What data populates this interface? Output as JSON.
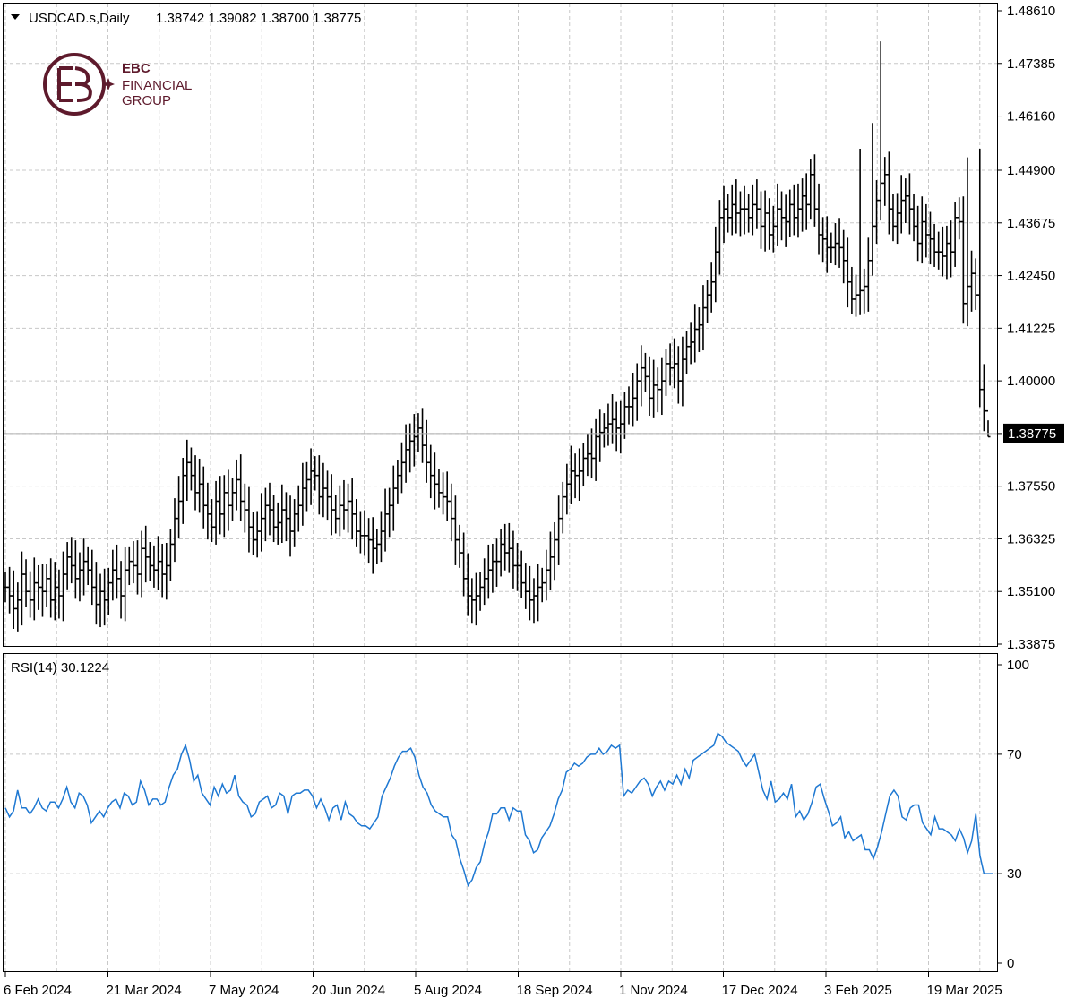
{
  "header": {
    "symbol": "USDCAD.s,Daily",
    "ohlc": "1.38742 1.39082 1.38700 1.38775"
  },
  "logo": {
    "line1": "EBC",
    "line2": "FINANCIAL",
    "line3": "GROUP"
  },
  "indicator_label": "RSI(14) 30.1224",
  "current_price_label": "1.38775",
  "colors": {
    "bars": "#000000",
    "rsi_line": "#1e78d2",
    "grid": "#c8c8c8",
    "logo": "#5e1a2c"
  },
  "chart_data": [
    {
      "type": "ohlc",
      "title": "USDCAD.s,Daily",
      "ylim": [
        1.3375,
        1.4862
      ],
      "y_ticks": [
        "1.48610",
        "1.47385",
        "1.46160",
        "1.44900",
        "1.43675",
        "1.42450",
        "1.41225",
        "1.40000",
        "1.38775",
        "1.37550",
        "1.36325",
        "1.35100",
        "1.33875"
      ],
      "x_ticks": [
        "6 Feb 2024",
        "21 Mar 2024",
        "7 May 2024",
        "20 Jun 2024",
        "5 Aug 2024",
        "18 Sep 2024",
        "1 Nov 2024",
        "17 Dec 2024",
        "3 Feb 2025",
        "19 Mar 2025"
      ],
      "grid": true,
      "close_approx": [
        1.352,
        1.35,
        1.347,
        1.349,
        1.355,
        1.351,
        1.349,
        1.353,
        1.352,
        1.351,
        1.354,
        1.349,
        1.352,
        1.35,
        1.355,
        1.359,
        1.357,
        1.354,
        1.356,
        1.358,
        1.356,
        1.352,
        1.348,
        1.351,
        1.349,
        1.353,
        1.356,
        1.354,
        1.35,
        1.356,
        1.358,
        1.357,
        1.355,
        1.361,
        1.359,
        1.357,
        1.356,
        1.358,
        1.355,
        1.357,
        1.362,
        1.368,
        1.372,
        1.378,
        1.381,
        1.378,
        1.374,
        1.376,
        1.371,
        1.369,
        1.366,
        1.372,
        1.369,
        1.374,
        1.371,
        1.374,
        1.377,
        1.372,
        1.37,
        1.366,
        1.363,
        1.365,
        1.368,
        1.371,
        1.37,
        1.366,
        1.367,
        1.37,
        1.368,
        1.365,
        1.369,
        1.371,
        1.375,
        1.377,
        1.379,
        1.378,
        1.373,
        1.375,
        1.373,
        1.37,
        1.368,
        1.371,
        1.37,
        1.372,
        1.369,
        1.365,
        1.364,
        1.364,
        1.363,
        1.361,
        1.362,
        1.365,
        1.369,
        1.371,
        1.375,
        1.378,
        1.381,
        1.384,
        1.386,
        1.387,
        1.389,
        1.385,
        1.381,
        1.378,
        1.376,
        1.374,
        1.373,
        1.372,
        1.368,
        1.363,
        1.36,
        1.354,
        1.35,
        1.349,
        1.35,
        1.352,
        1.354,
        1.356,
        1.358,
        1.358,
        1.362,
        1.36,
        1.361,
        1.357,
        1.357,
        1.353,
        1.351,
        1.349,
        1.35,
        1.352,
        1.353,
        1.356,
        1.359,
        1.363,
        1.368,
        1.373,
        1.376,
        1.379,
        1.378,
        1.379,
        1.382,
        1.383,
        1.382,
        1.387,
        1.388,
        1.389,
        1.39,
        1.391,
        1.389,
        1.39,
        1.394,
        1.394,
        1.396,
        1.4,
        1.403,
        1.401,
        1.396,
        1.399,
        1.398,
        1.4,
        1.404,
        1.403,
        1.404,
        1.4,
        1.405,
        1.408,
        1.409,
        1.412,
        1.413,
        1.417,
        1.42,
        1.423,
        1.43,
        1.438,
        1.44,
        1.438,
        1.441,
        1.439,
        1.44,
        1.44,
        1.438,
        1.441,
        1.44,
        1.436,
        1.439,
        1.434,
        1.436,
        1.44,
        1.438,
        1.437,
        1.441,
        1.438,
        1.44,
        1.443,
        1.441,
        1.448,
        1.44,
        1.434,
        1.433,
        1.431,
        1.431,
        1.432,
        1.431,
        1.428,
        1.423,
        1.419,
        1.42,
        1.421,
        1.422,
        1.428,
        1.436,
        1.442,
        1.446,
        1.448,
        1.44,
        1.436,
        1.439,
        1.442,
        1.443,
        1.44,
        1.436,
        1.432,
        1.437,
        1.434,
        1.433,
        1.43,
        1.43,
        1.429,
        1.432,
        1.43,
        1.438,
        1.437,
        1.418,
        1.422,
        1.425,
        1.42,
        1.398,
        1.393,
        1.387
      ]
    },
    {
      "type": "line",
      "title": "RSI(14) 30.1224",
      "name": "RSI(14)",
      "ylim": [
        0,
        100
      ],
      "y_ticks": [
        "100",
        "70",
        "30",
        "0"
      ],
      "grid": true,
      "values": [
        52,
        49,
        51,
        58,
        52,
        52,
        50,
        52,
        55,
        52,
        51,
        54,
        54,
        52,
        55,
        59,
        54,
        52,
        57,
        56,
        53,
        47,
        49,
        51,
        49,
        52,
        54,
        55,
        52,
        57,
        56,
        53,
        54,
        61,
        58,
        53,
        55,
        55,
        53,
        54,
        59,
        63,
        65,
        70,
        73,
        68,
        61,
        63,
        57,
        55,
        53,
        59,
        56,
        60,
        57,
        58,
        63,
        56,
        54,
        53,
        49,
        50,
        54,
        55,
        56,
        52,
        53,
        57,
        56,
        50,
        56,
        57,
        57,
        58,
        58,
        56,
        52,
        55,
        52,
        48,
        52,
        53,
        48,
        54,
        50,
        49,
        47,
        46,
        46,
        45,
        47,
        49,
        56,
        59,
        62,
        66,
        69,
        71,
        71,
        72,
        69,
        63,
        59,
        57,
        53,
        51,
        50,
        49,
        49,
        43,
        41,
        35,
        31,
        26,
        28,
        32,
        34,
        40,
        44,
        50,
        50,
        52,
        52,
        48,
        52,
        51,
        51,
        43,
        41,
        37,
        38,
        42,
        44,
        46,
        50,
        55,
        58,
        64,
        65,
        67,
        66,
        67,
        69,
        70,
        70,
        72,
        70,
        71,
        73,
        72,
        73,
        56,
        58,
        57,
        59,
        61,
        62,
        60,
        56,
        59,
        61,
        58,
        61,
        60,
        63,
        60,
        65,
        62,
        68,
        69,
        70,
        71,
        72,
        73,
        77,
        76,
        74,
        73,
        72,
        71,
        68,
        66,
        68,
        70,
        64,
        58,
        55,
        61,
        54,
        55,
        57,
        55,
        60,
        49,
        51,
        48,
        50,
        54,
        59,
        60,
        55,
        51,
        46,
        47,
        49,
        42,
        44,
        41,
        42,
        43,
        38,
        38,
        35,
        39,
        44,
        50,
        56,
        58,
        56,
        49,
        48,
        52,
        53,
        53,
        47,
        45,
        43,
        49,
        45,
        45,
        44,
        43,
        41,
        45,
        42,
        37,
        41,
        50,
        36,
        30,
        30
      ]
    }
  ]
}
